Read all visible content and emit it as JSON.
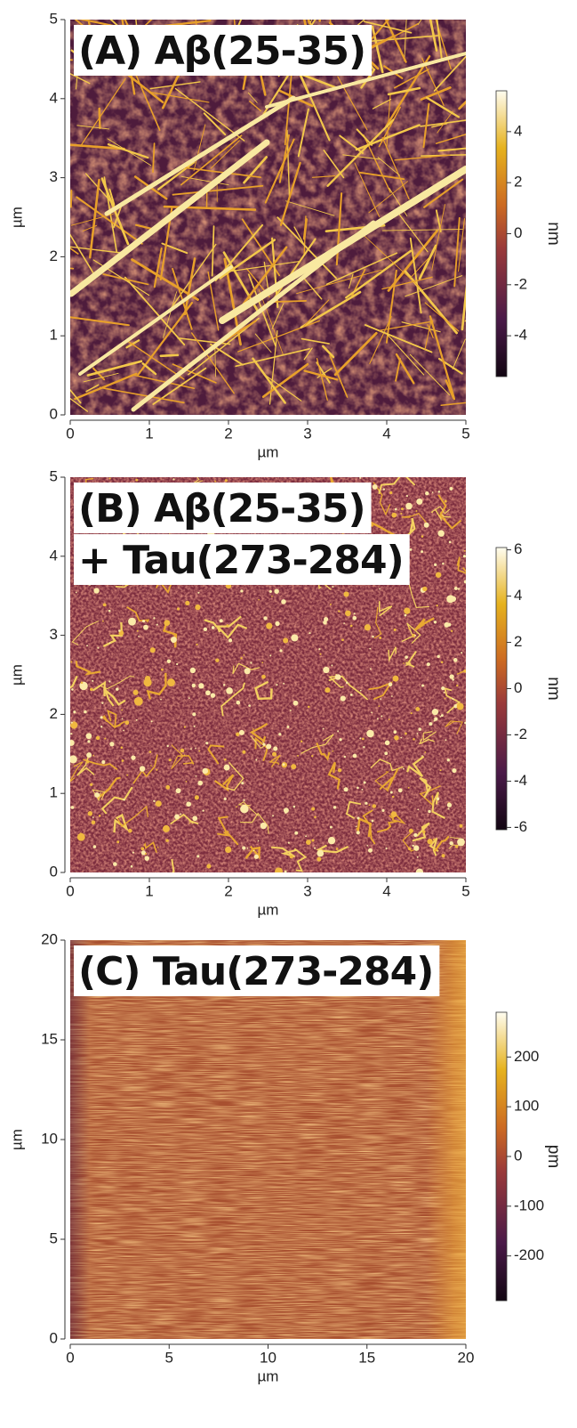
{
  "chart_data": [
    {
      "type": "image",
      "title": [
        "(A) Aβ(25-35)"
      ],
      "xlabel": "µm",
      "ylabel": "µm",
      "colorbar_label": "nm",
      "xlim": [
        0,
        5
      ],
      "ylim": [
        0,
        5
      ],
      "xticks": [
        0,
        1,
        2,
        3,
        4,
        5
      ],
      "yticks": [
        0,
        1,
        2,
        3,
        4,
        5
      ],
      "clim": [
        -5.6,
        5.6
      ],
      "cticks": [
        -4,
        -2,
        0,
        2,
        4
      ]
    },
    {
      "type": "image",
      "title": [
        "(B) Aβ(25-35)",
        "+ Tau(273-284)"
      ],
      "xlabel": "µm",
      "ylabel": "µm",
      "colorbar_label": "nm",
      "xlim": [
        0,
        5
      ],
      "ylim": [
        0,
        5
      ],
      "xticks": [
        0,
        1,
        2,
        3,
        4,
        5
      ],
      "yticks": [
        0,
        1,
        2,
        3,
        4,
        5
      ],
      "clim": [
        -6.1,
        6.1
      ],
      "cticks": [
        -6,
        -4,
        -2,
        0,
        2,
        4,
        6
      ]
    },
    {
      "type": "image",
      "title": [
        "(C) Tau(273-284)"
      ],
      "xlabel": "µm",
      "ylabel": "µm",
      "colorbar_label": "pm",
      "xlim": [
        0,
        20
      ],
      "ylim": [
        0,
        20
      ],
      "xticks": [
        0,
        5,
        10,
        15,
        20
      ],
      "yticks": [
        0,
        5,
        10,
        15,
        20
      ],
      "clim": [
        -290,
        290
      ],
      "cticks": [
        -200,
        -100,
        0,
        100,
        200
      ]
    }
  ]
}
